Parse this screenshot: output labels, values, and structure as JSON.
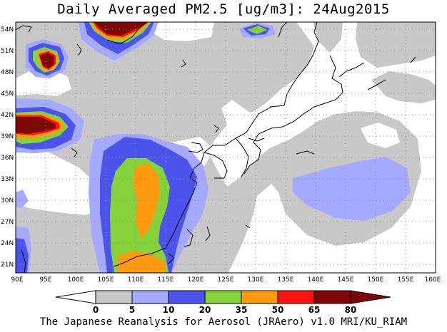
{
  "title": "Daily Averaged PM2.5 [ug/m3]: 24Aug2015",
  "credit": "The Japanese Reanalysis for Aerosol (JRAero) v1.0 MRI/KU_RIAM",
  "map": {
    "lon_labels": [
      "90E",
      "95E",
      "100E",
      "105E",
      "110E",
      "115E",
      "120E",
      "125E",
      "130E",
      "135E",
      "140E",
      "145E",
      "150E",
      "155E",
      "160E"
    ],
    "lat_labels": [
      "54N",
      "51N",
      "48N",
      "45N",
      "42N",
      "39N",
      "36N",
      "33N",
      "30N",
      "27N",
      "24N",
      "21N"
    ],
    "lon_range": [
      90,
      160
    ],
    "lat_range": [
      20,
      55
    ],
    "gridlines": "dotted"
  },
  "colorbar": {
    "levels": [
      "0",
      "5",
      "10",
      "20",
      "35",
      "50",
      "65",
      "80"
    ],
    "colors": [
      "#ffffff",
      "#c8c8c8",
      "#a5a9ff",
      "#4b53ea",
      "#86d23a",
      "#ff9a0f",
      "#ff1212",
      "#7d0606"
    ],
    "min_color": "#ffffff",
    "max_color": "#7d0606"
  }
}
